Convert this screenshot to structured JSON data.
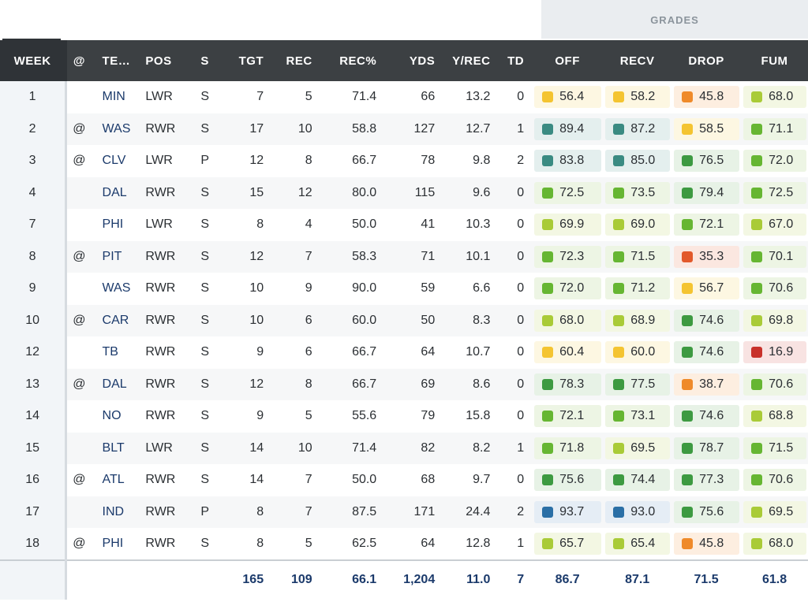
{
  "grades_header": "GRADES",
  "columns": {
    "week": "WEEK",
    "at": "@",
    "team": "TE…",
    "pos": "POS",
    "s": "S",
    "tgt": "TGT",
    "rec": "REC",
    "rec_pct": "REC%",
    "yds": "YDS",
    "y_rec": "Y/REC",
    "td": "TD",
    "off": "OFF",
    "recv": "RECV",
    "drop": "DROP",
    "fum": "FUM"
  },
  "rows": [
    {
      "week": "1",
      "at": "",
      "team": "MIN",
      "pos": "LWR",
      "s": "S",
      "tgt": "7",
      "rec": "5",
      "rec_pct": "71.4",
      "yds": "66",
      "y_rec": "13.2",
      "td": "0",
      "off": "56.4",
      "recv": "58.2",
      "drop": "45.8",
      "fum": "68.0"
    },
    {
      "week": "2",
      "at": "@",
      "team": "WAS",
      "pos": "RWR",
      "s": "S",
      "tgt": "17",
      "rec": "10",
      "rec_pct": "58.8",
      "yds": "127",
      "y_rec": "12.7",
      "td": "1",
      "off": "89.4",
      "recv": "87.2",
      "drop": "58.5",
      "fum": "71.1"
    },
    {
      "week": "3",
      "at": "@",
      "team": "CLV",
      "pos": "LWR",
      "s": "P",
      "tgt": "12",
      "rec": "8",
      "rec_pct": "66.7",
      "yds": "78",
      "y_rec": "9.8",
      "td": "2",
      "off": "83.8",
      "recv": "85.0",
      "drop": "76.5",
      "fum": "72.0"
    },
    {
      "week": "4",
      "at": "",
      "team": "DAL",
      "pos": "RWR",
      "s": "S",
      "tgt": "15",
      "rec": "12",
      "rec_pct": "80.0",
      "yds": "115",
      "y_rec": "9.6",
      "td": "0",
      "off": "72.5",
      "recv": "73.5",
      "drop": "79.4",
      "fum": "72.5"
    },
    {
      "week": "7",
      "at": "",
      "team": "PHI",
      "pos": "LWR",
      "s": "S",
      "tgt": "8",
      "rec": "4",
      "rec_pct": "50.0",
      "yds": "41",
      "y_rec": "10.3",
      "td": "0",
      "off": "69.9",
      "recv": "69.0",
      "drop": "72.1",
      "fum": "67.0"
    },
    {
      "week": "8",
      "at": "@",
      "team": "PIT",
      "pos": "RWR",
      "s": "S",
      "tgt": "12",
      "rec": "7",
      "rec_pct": "58.3",
      "yds": "71",
      "y_rec": "10.1",
      "td": "0",
      "off": "72.3",
      "recv": "71.5",
      "drop": "35.3",
      "fum": "70.1"
    },
    {
      "week": "9",
      "at": "",
      "team": "WAS",
      "pos": "RWR",
      "s": "S",
      "tgt": "10",
      "rec": "9",
      "rec_pct": "90.0",
      "yds": "59",
      "y_rec": "6.6",
      "td": "0",
      "off": "72.0",
      "recv": "71.2",
      "drop": "56.7",
      "fum": "70.6"
    },
    {
      "week": "10",
      "at": "@",
      "team": "CAR",
      "pos": "RWR",
      "s": "S",
      "tgt": "10",
      "rec": "6",
      "rec_pct": "60.0",
      "yds": "50",
      "y_rec": "8.3",
      "td": "0",
      "off": "68.0",
      "recv": "68.9",
      "drop": "74.6",
      "fum": "69.8"
    },
    {
      "week": "12",
      "at": "",
      "team": "TB",
      "pos": "RWR",
      "s": "S",
      "tgt": "9",
      "rec": "6",
      "rec_pct": "66.7",
      "yds": "64",
      "y_rec": "10.7",
      "td": "0",
      "off": "60.4",
      "recv": "60.0",
      "drop": "74.6",
      "fum": "16.9"
    },
    {
      "week": "13",
      "at": "@",
      "team": "DAL",
      "pos": "RWR",
      "s": "S",
      "tgt": "12",
      "rec": "8",
      "rec_pct": "66.7",
      "yds": "69",
      "y_rec": "8.6",
      "td": "0",
      "off": "78.3",
      "recv": "77.5",
      "drop": "38.7",
      "fum": "70.6"
    },
    {
      "week": "14",
      "at": "",
      "team": "NO",
      "pos": "RWR",
      "s": "S",
      "tgt": "9",
      "rec": "5",
      "rec_pct": "55.6",
      "yds": "79",
      "y_rec": "15.8",
      "td": "0",
      "off": "72.1",
      "recv": "73.1",
      "drop": "74.6",
      "fum": "68.8"
    },
    {
      "week": "15",
      "at": "",
      "team": "BLT",
      "pos": "LWR",
      "s": "S",
      "tgt": "14",
      "rec": "10",
      "rec_pct": "71.4",
      "yds": "82",
      "y_rec": "8.2",
      "td": "1",
      "off": "71.8",
      "recv": "69.5",
      "drop": "78.7",
      "fum": "71.5"
    },
    {
      "week": "16",
      "at": "@",
      "team": "ATL",
      "pos": "RWR",
      "s": "S",
      "tgt": "14",
      "rec": "7",
      "rec_pct": "50.0",
      "yds": "68",
      "y_rec": "9.7",
      "td": "0",
      "off": "75.6",
      "recv": "74.4",
      "drop": "77.3",
      "fum": "70.6"
    },
    {
      "week": "17",
      "at": "",
      "team": "IND",
      "pos": "RWR",
      "s": "P",
      "tgt": "8",
      "rec": "7",
      "rec_pct": "87.5",
      "yds": "171",
      "y_rec": "24.4",
      "td": "2",
      "off": "93.7",
      "recv": "93.0",
      "drop": "75.6",
      "fum": "69.5"
    },
    {
      "week": "18",
      "at": "@",
      "team": "PHI",
      "pos": "RWR",
      "s": "S",
      "tgt": "8",
      "rec": "5",
      "rec_pct": "62.5",
      "yds": "64",
      "y_rec": "12.8",
      "td": "1",
      "off": "65.7",
      "recv": "65.4",
      "drop": "45.8",
      "fum": "68.0"
    }
  ],
  "totals": {
    "tgt": "165",
    "rec": "109",
    "rec_pct": "66.1",
    "yds": "1,204",
    "y_rec": "11.0",
    "td": "7",
    "off": "86.7",
    "recv": "87.1",
    "drop": "71.5",
    "fum": "61.8"
  },
  "grade_colors": {
    "elite": {
      "dot": "#2a6fa6",
      "bg": "#e5edf5"
    },
    "high": {
      "dot": "#3a8b82",
      "bg": "#e4efee"
    },
    "good": {
      "dot": "#3d9a41",
      "bg": "#e7f2e6"
    },
    "above": {
      "dot": "#66b632",
      "bg": "#edf5e4"
    },
    "avg": {
      "dot": "#a9cb37",
      "bg": "#f3f7e3"
    },
    "below": {
      "dot": "#f4c431",
      "bg": "#fdf7e2"
    },
    "poor": {
      "dot": "#ef8a2a",
      "bg": "#fdeee0"
    },
    "bad": {
      "dot": "#e2592b",
      "bg": "#fbe7e0"
    },
    "worst": {
      "dot": "#c8312a",
      "bg": "#f8e3e2"
    }
  }
}
